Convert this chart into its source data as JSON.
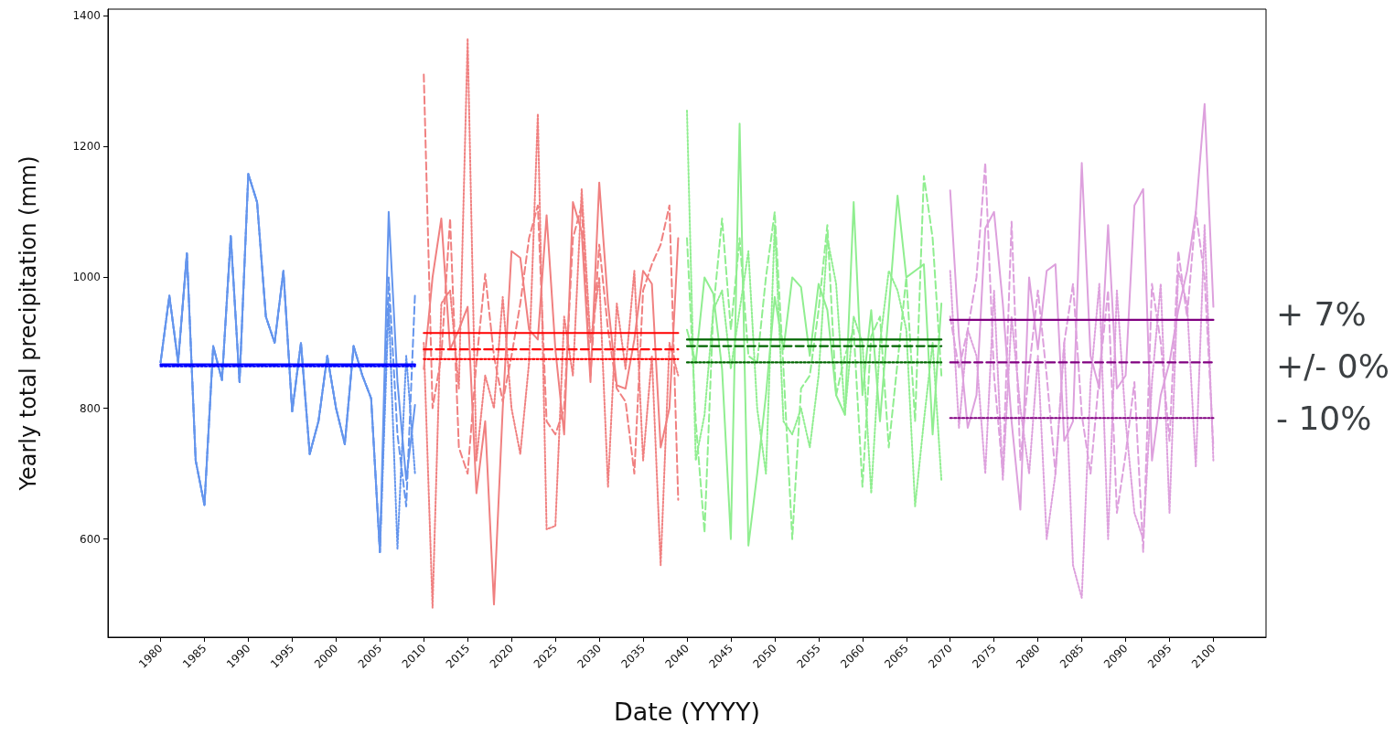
{
  "chart_data": {
    "type": "line",
    "xlabel": "Date (YYYY)",
    "ylabel": "Yearly total precipitation (mm)",
    "xlim": [
      1974,
      2106
    ],
    "ylim": [
      450,
      1410
    ],
    "xticks": [
      1980,
      1985,
      1990,
      1995,
      2000,
      2005,
      2010,
      2015,
      2020,
      2025,
      2030,
      2035,
      2040,
      2045,
      2050,
      2055,
      2060,
      2065,
      2070,
      2075,
      2080,
      2085,
      2090,
      2095,
      2100
    ],
    "yticks": [
      600,
      800,
      1000,
      1200,
      1400
    ],
    "grid": false,
    "annotations": [
      "+ 7%",
      "+/- 0%",
      "- 10%"
    ],
    "series": [
      {
        "color": "#6495ed",
        "line_style": "dotted",
        "x": [
          1980,
          1981,
          1982,
          1983,
          1984,
          1985,
          1986,
          1987,
          1988,
          1989,
          1990,
          1991,
          1992,
          1993,
          1994,
          1995,
          1996,
          1997,
          1998,
          1999,
          2000,
          2001,
          2002,
          2003,
          2004,
          2005,
          2006,
          2007,
          2008,
          2009
        ],
        "values": [
          870,
          972,
          870,
          1037,
          720,
          652,
          895,
          843,
          1063,
          840,
          1158,
          1115,
          940,
          900,
          1010,
          795,
          900,
          730,
          780,
          880,
          800,
          745,
          895,
          850,
          815,
          580,
          960,
          585,
          880,
          700
        ]
      },
      {
        "color": "#6495ed",
        "line_style": "dashed",
        "x": [
          1980,
          1981,
          1982,
          1983,
          1984,
          1985,
          1986,
          1987,
          1988,
          1989,
          1990,
          1991,
          1992,
          1993,
          1994,
          1995,
          1996,
          1997,
          1998,
          1999,
          2000,
          2001,
          2002,
          2003,
          2004,
          2005,
          2006,
          2007,
          2008,
          2009
        ],
        "values": [
          870,
          972,
          870,
          1037,
          720,
          652,
          895,
          843,
          1063,
          840,
          1158,
          1115,
          940,
          900,
          1010,
          795,
          900,
          730,
          780,
          880,
          800,
          745,
          895,
          850,
          815,
          580,
          1000,
          760,
          650,
          975
        ]
      },
      {
        "color": "#6495ed",
        "line_style": "solid",
        "x": [
          1980,
          1981,
          1982,
          1983,
          1984,
          1985,
          1986,
          1987,
          1988,
          1989,
          1990,
          1991,
          1992,
          1993,
          1994,
          1995,
          1996,
          1997,
          1998,
          1999,
          2000,
          2001,
          2002,
          2003,
          2004,
          2005,
          2006,
          2007,
          2008,
          2009
        ],
        "values": [
          870,
          972,
          870,
          1037,
          720,
          652,
          895,
          843,
          1063,
          840,
          1158,
          1115,
          940,
          900,
          1010,
          795,
          900,
          730,
          780,
          880,
          800,
          745,
          895,
          850,
          815,
          580,
          1100,
          840,
          690,
          805
        ]
      },
      {
        "color": "#f08080",
        "line_style": "dotted",
        "x": [
          2010,
          2011,
          2012,
          2013,
          2014,
          2015,
          2016,
          2017,
          2018,
          2019,
          2020,
          2021,
          2022,
          2023,
          2024,
          2025,
          2026,
          2027,
          2028,
          2029,
          2030,
          2031,
          2032,
          2033,
          2034,
          2035,
          2036,
          2037,
          2038,
          2039
        ],
        "values": [
          900,
          495,
          960,
          980,
          830,
          1365,
          720,
          850,
          800,
          970,
          800,
          730,
          870,
          1250,
          615,
          620,
          940,
          850,
          1135,
          900,
          1000,
          680,
          960,
          860,
          1010,
          720,
          880,
          560,
          900,
          850
        ]
      },
      {
        "color": "#f08080",
        "line_style": "dashed",
        "x": [
          2010,
          2011,
          2012,
          2013,
          2014,
          2015,
          2016,
          2017,
          2018,
          2019,
          2020,
          2021,
          2022,
          2023,
          2024,
          2025,
          2026,
          2027,
          2028,
          2029,
          2030,
          2031,
          2032,
          2033,
          2034,
          2035,
          2036,
          2037,
          2038,
          2039
        ],
        "values": [
          1310,
          800,
          880,
          1090,
          740,
          700,
          870,
          1005,
          880,
          810,
          880,
          960,
          1060,
          1110,
          780,
          760,
          800,
          1060,
          1110,
          850,
          1050,
          920,
          830,
          810,
          700,
          980,
          1020,
          1050,
          1110,
          660
        ]
      },
      {
        "color": "#f08080",
        "line_style": "solid",
        "x": [
          2010,
          2011,
          2012,
          2013,
          2014,
          2015,
          2016,
          2017,
          2018,
          2019,
          2020,
          2021,
          2022,
          2023,
          2024,
          2025,
          2026,
          2027,
          2028,
          2029,
          2030,
          2031,
          2032,
          2033,
          2034,
          2035,
          2036,
          2037,
          2038,
          2039
        ],
        "values": [
          860,
          1000,
          1090,
          890,
          920,
          955,
          670,
          780,
          500,
          800,
          1040,
          1030,
          920,
          905,
          1095,
          890,
          760,
          1115,
          1070,
          840,
          1145,
          960,
          835,
          830,
          905,
          1010,
          990,
          740,
          800,
          1060
        ]
      },
      {
        "color": "#90ee90",
        "line_style": "dotted",
        "x": [
          2040,
          2041,
          2042,
          2043,
          2044,
          2045,
          2046,
          2047,
          2048,
          2049,
          2050,
          2051,
          2052,
          2053,
          2054,
          2055,
          2056,
          2057,
          2058,
          2059,
          2060,
          2061,
          2062,
          2063,
          2064,
          2065,
          2066,
          2067,
          2068,
          2069
        ],
        "values": [
          1255,
          720,
          790,
          950,
          980,
          860,
          950,
          1040,
          800,
          700,
          1080,
          780,
          760,
          800,
          740,
          850,
          1060,
          990,
          790,
          940,
          900,
          670,
          900,
          1010,
          980,
          920,
          650,
          780,
          900,
          690
        ]
      },
      {
        "color": "#90ee90",
        "line_style": "dashed",
        "x": [
          2040,
          2041,
          2042,
          2043,
          2044,
          2045,
          2046,
          2047,
          2048,
          2049,
          2050,
          2051,
          2052,
          2053,
          2054,
          2055,
          2056,
          2057,
          2058,
          2059,
          2060,
          2061,
          2062,
          2063,
          2064,
          2065,
          2066,
          2067,
          2068,
          2069
        ],
        "values": [
          1060,
          780,
          610,
          950,
          1090,
          920,
          1060,
          880,
          870,
          1000,
          1100,
          860,
          600,
          830,
          850,
          950,
          1080,
          820,
          880,
          920,
          680,
          910,
          940,
          740,
          870,
          1000,
          780,
          1155,
          1060,
          850
        ]
      },
      {
        "color": "#90ee90",
        "line_style": "solid",
        "x": [
          2040,
          2041,
          2042,
          2043,
          2044,
          2045,
          2046,
          2047,
          2048,
          2049,
          2050,
          2051,
          2052,
          2053,
          2054,
          2055,
          2056,
          2057,
          2058,
          2059,
          2060,
          2061,
          2062,
          2063,
          2064,
          2065,
          2066,
          2067,
          2068,
          2069
        ],
        "values": [
          920,
          870,
          1000,
          975,
          860,
          600,
          1235,
          590,
          700,
          820,
          970,
          890,
          1000,
          985,
          880,
          990,
          950,
          820,
          790,
          1115,
          820,
          950,
          780,
          950,
          1125,
          1000,
          1010,
          1020,
          760,
          960
        ]
      },
      {
        "color": "#dda0dd",
        "line_style": "dotted",
        "x": [
          2070,
          2071,
          2072,
          2073,
          2074,
          2075,
          2076,
          2077,
          2078,
          2079,
          2080,
          2081,
          2082,
          2083,
          2084,
          2085,
          2086,
          2087,
          2088,
          2089,
          2090,
          2091,
          2092,
          2093,
          2094,
          2095,
          2096,
          2097,
          2098,
          2099,
          2100
        ],
        "values": [
          1010,
          770,
          920,
          880,
          700,
          980,
          690,
          940,
          800,
          700,
          880,
          600,
          700,
          900,
          560,
          510,
          840,
          990,
          600,
          980,
          780,
          640,
          600,
          840,
          990,
          640,
          1010,
          960,
          710,
          1080,
          720
        ]
      },
      {
        "color": "#dda0dd",
        "line_style": "dashed",
        "x": [
          2070,
          2071,
          2072,
          2073,
          2074,
          2075,
          2076,
          2077,
          2078,
          2079,
          2080,
          2081,
          2082,
          2083,
          2084,
          2085,
          2086,
          2087,
          2088,
          2089,
          2090,
          2091,
          2092,
          2093,
          2094,
          2095,
          2096,
          2097,
          2098,
          2099,
          2100
        ],
        "values": [
          940,
          860,
          920,
          1000,
          1175,
          850,
          700,
          1085,
          720,
          860,
          980,
          850,
          700,
          900,
          990,
          790,
          700,
          850,
          980,
          640,
          730,
          840,
          580,
          990,
          900,
          750,
          1040,
          940,
          1100,
          1000,
          740
        ]
      },
      {
        "color": "#dda0dd",
        "line_style": "solid",
        "x": [
          2070,
          2071,
          2072,
          2073,
          2074,
          2075,
          2076,
          2077,
          2078,
          2079,
          2080,
          2081,
          2082,
          2083,
          2084,
          2085,
          2086,
          2087,
          2088,
          2089,
          2090,
          2091,
          2092,
          2093,
          2094,
          2095,
          2096,
          2097,
          2098,
          2099,
          2100
        ],
        "values": [
          1133,
          910,
          770,
          820,
          1075,
          1100,
          960,
          780,
          645,
          1000,
          890,
          1010,
          1020,
          750,
          780,
          1175,
          880,
          830,
          1080,
          830,
          850,
          1110,
          1135,
          720,
          820,
          870,
          950,
          1010,
          1100,
          1265,
          955
        ]
      },
      {
        "color": "#0000ff",
        "line_style": "dotted",
        "x": [
          1980,
          2009
        ],
        "values": [
          864,
          864
        ]
      },
      {
        "color": "#0000ff",
        "line_style": "dashed",
        "x": [
          1980,
          2009
        ],
        "values": [
          866,
          866
        ]
      },
      {
        "color": "#0000ff",
        "line_style": "solid",
        "x": [
          1980,
          2009
        ],
        "values": [
          867,
          867
        ]
      },
      {
        "color": "#ff0000",
        "line_style": "dotted",
        "x": [
          2010,
          2039
        ],
        "values": [
          875,
          875
        ]
      },
      {
        "color": "#ff0000",
        "line_style": "dashed",
        "x": [
          2010,
          2039
        ],
        "values": [
          890,
          890
        ]
      },
      {
        "color": "#ff0000",
        "line_style": "solid",
        "x": [
          2010,
          2039
        ],
        "values": [
          915,
          915
        ]
      },
      {
        "color": "#006400",
        "line_style": "dotted",
        "x": [
          2040,
          2069
        ],
        "values": [
          870,
          870
        ]
      },
      {
        "color": "#006400",
        "line_style": "dashed",
        "x": [
          2040,
          2069
        ],
        "values": [
          895,
          895
        ]
      },
      {
        "color": "#006400",
        "line_style": "solid",
        "x": [
          2040,
          2069
        ],
        "values": [
          905,
          905
        ]
      },
      {
        "color": "#800080",
        "line_style": "dotted",
        "x": [
          2070,
          2100
        ],
        "values": [
          785,
          785
        ]
      },
      {
        "color": "#800080",
        "line_style": "dashed",
        "x": [
          2070,
          2100
        ],
        "values": [
          870,
          870
        ]
      },
      {
        "color": "#800080",
        "line_style": "solid",
        "x": [
          2070,
          2100
        ],
        "values": [
          935,
          935
        ]
      }
    ]
  }
}
